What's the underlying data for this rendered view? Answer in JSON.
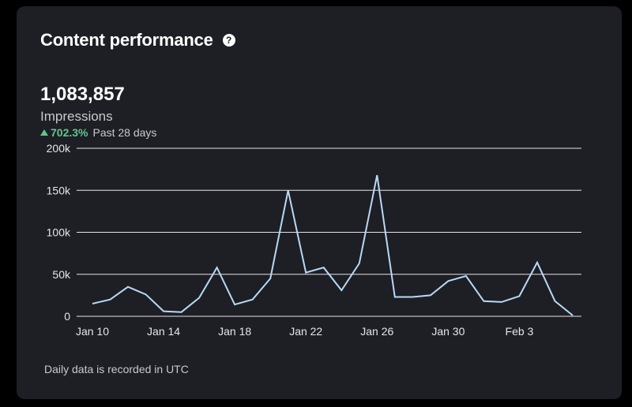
{
  "card": {
    "title": "Content performance",
    "help_icon": "question-circle-icon",
    "metric_value": "1,083,857",
    "metric_label": "Impressions",
    "change_value": "702.3%",
    "change_period": "Past 28 days",
    "footnote": "Daily data is recorded in UTC"
  },
  "colors": {
    "background": "#1d1f25",
    "line": "#b9d9f5",
    "grid": "#e6e6e6",
    "positive": "#5fc78a"
  },
  "chart_data": {
    "type": "line",
    "title": "",
    "xlabel": "",
    "ylabel": "",
    "ylim": [
      0,
      200000
    ],
    "yticks": [
      0,
      50000,
      100000,
      150000,
      200000
    ],
    "ytick_labels": [
      "0",
      "50k",
      "100k",
      "150k",
      "200k"
    ],
    "xtick_labels": [
      "Jan 10",
      "Jan 14",
      "Jan 18",
      "Jan 22",
      "Jan 26",
      "Jan 30",
      "Feb 3"
    ],
    "grid": true,
    "x": [
      "Jan 10",
      "Jan 11",
      "Jan 12",
      "Jan 13",
      "Jan 14",
      "Jan 15",
      "Jan 16",
      "Jan 17",
      "Jan 18",
      "Jan 19",
      "Jan 20",
      "Jan 21",
      "Jan 22",
      "Jan 23",
      "Jan 24",
      "Jan 25",
      "Jan 26",
      "Jan 27",
      "Jan 28",
      "Jan 29",
      "Jan 30",
      "Jan 31",
      "Feb 1",
      "Feb 2",
      "Feb 3",
      "Feb 4",
      "Feb 5",
      "Feb 6"
    ],
    "series": [
      {
        "values": [
          15000,
          20000,
          35000,
          26000,
          6000,
          5000,
          22000,
          58000,
          14000,
          20000,
          45000,
          150000,
          52000,
          58000,
          31000,
          63000,
          168000,
          23000,
          23000,
          25000,
          42000,
          48000,
          18000,
          17000,
          24000,
          64000,
          18000,
          1000
        ]
      }
    ]
  }
}
